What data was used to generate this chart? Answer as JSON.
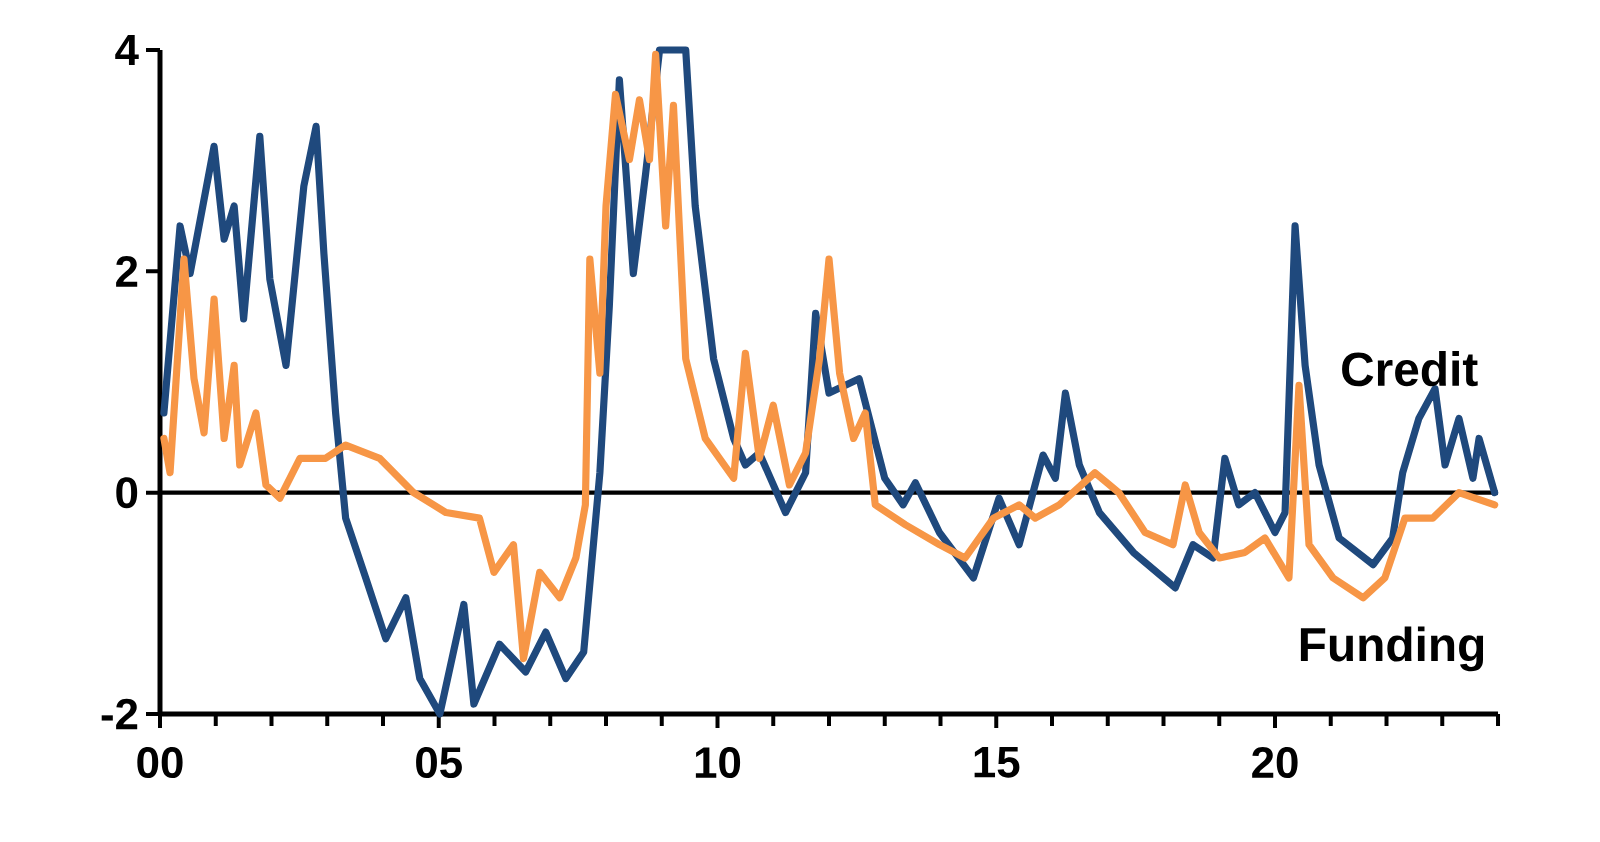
{
  "chart_data": {
    "type": "line",
    "xlim": [
      0,
      24
    ],
    "ylim": [
      -2,
      4
    ],
    "xticks": [
      {
        "value": 0,
        "label": "00"
      },
      {
        "value": 1,
        "label": null
      },
      {
        "value": 2,
        "label": null
      },
      {
        "value": 3,
        "label": null
      },
      {
        "value": 4,
        "label": null
      },
      {
        "value": 5,
        "label": "05"
      },
      {
        "value": 6,
        "label": null
      },
      {
        "value": 7,
        "label": null
      },
      {
        "value": 8,
        "label": null
      },
      {
        "value": 9,
        "label": null
      },
      {
        "value": 10,
        "label": "10"
      },
      {
        "value": 11,
        "label": null
      },
      {
        "value": 12,
        "label": null
      },
      {
        "value": 13,
        "label": null
      },
      {
        "value": 14,
        "label": null
      },
      {
        "value": 15,
        "label": "15"
      },
      {
        "value": 16,
        "label": null
      },
      {
        "value": 17,
        "label": null
      },
      {
        "value": 18,
        "label": null
      },
      {
        "value": 19,
        "label": null
      },
      {
        "value": 20,
        "label": "20"
      },
      {
        "value": 21,
        "label": null
      },
      {
        "value": 22,
        "label": null
      },
      {
        "value": 23,
        "label": null
      },
      {
        "value": 24,
        "label": null
      }
    ],
    "yticks": [
      -2,
      0,
      2,
      4
    ],
    "grid": false,
    "legend": false,
    "marker": "none",
    "line_style": "solid",
    "ref_lines": [
      {
        "axis": "y",
        "value": 0,
        "color": "#000000"
      }
    ],
    "series": [
      {
        "name": "Credit",
        "color": "#1f497d",
        "x": [
          0.07,
          0.36,
          0.54,
          0.97,
          1.15,
          1.33,
          1.5,
          1.79,
          1.97,
          2.26,
          2.58,
          2.8,
          2.94,
          3.15,
          3.33,
          3.69,
          4.05,
          4.41,
          4.66,
          5.02,
          5.45,
          5.63,
          6.09,
          6.56,
          6.92,
          7.28,
          7.6,
          7.89,
          8.06,
          8.24,
          8.49,
          8.71,
          8.96,
          9.43,
          9.6,
          9.93,
          10.29,
          10.5,
          10.75,
          11.22,
          11.58,
          11.76,
          12.0,
          12.54,
          13.0,
          13.33,
          13.55,
          13.98,
          14.59,
          15.05,
          15.41,
          15.84,
          16.06,
          16.24,
          16.49,
          16.85,
          17.46,
          18.21,
          18.53,
          18.89,
          19.1,
          19.35,
          19.64,
          20.0,
          20.18,
          20.36,
          20.54,
          20.79,
          21.15,
          21.76,
          22.11,
          22.29,
          22.58,
          22.87,
          23.05,
          23.3,
          23.55,
          23.66,
          23.94
        ],
        "values": [
          0.72,
          2.41,
          1.98,
          3.13,
          2.29,
          2.59,
          1.57,
          3.22,
          1.93,
          1.15,
          2.77,
          3.31,
          2.16,
          0.72,
          -0.23,
          -0.77,
          -1.32,
          -0.95,
          -1.68,
          -2.0,
          -1.01,
          -1.91,
          -1.37,
          -1.62,
          -1.26,
          -1.68,
          -1.44,
          0.18,
          1.69,
          3.73,
          1.98,
          2.88,
          4.0,
          4.0,
          2.59,
          1.21,
          0.49,
          0.25,
          0.36,
          -0.18,
          0.18,
          1.62,
          0.9,
          1.03,
          0.13,
          -0.11,
          0.09,
          -0.36,
          -0.77,
          -0.05,
          -0.47,
          0.34,
          0.13,
          0.9,
          0.25,
          -0.18,
          -0.54,
          -0.86,
          -0.47,
          -0.59,
          0.31,
          -0.11,
          0.0,
          -0.36,
          -0.18,
          2.41,
          1.15,
          0.25,
          -0.41,
          -0.65,
          -0.41,
          0.18,
          0.67,
          0.94,
          0.25,
          0.67,
          0.13,
          0.49,
          0.0
        ]
      },
      {
        "name": "Funding",
        "color": "#f79646",
        "x": [
          0.07,
          0.18,
          0.43,
          0.61,
          0.79,
          0.97,
          1.15,
          1.33,
          1.43,
          1.72,
          1.9,
          2.15,
          2.51,
          2.97,
          3.33,
          3.94,
          4.55,
          5.13,
          5.73,
          5.99,
          6.34,
          6.52,
          6.81,
          7.17,
          7.46,
          7.63,
          7.71,
          7.89,
          8.0,
          8.17,
          8.42,
          8.6,
          8.78,
          8.89,
          9.07,
          9.21,
          9.43,
          9.78,
          10.29,
          10.5,
          10.75,
          11.0,
          11.29,
          11.58,
          11.83,
          12.0,
          12.19,
          12.44,
          12.65,
          12.83,
          13.37,
          13.98,
          14.44,
          14.95,
          15.41,
          15.7,
          16.13,
          16.77,
          17.2,
          17.67,
          18.17,
          18.39,
          18.64,
          19.0,
          19.46,
          19.82,
          20.25,
          20.43,
          20.61,
          21.04,
          21.58,
          21.97,
          22.33,
          22.83,
          23.3,
          23.94
        ],
        "values": [
          0.49,
          0.18,
          2.11,
          1.03,
          0.54,
          1.75,
          0.49,
          1.15,
          0.25,
          0.72,
          0.07,
          -0.05,
          0.31,
          0.31,
          0.43,
          0.31,
          0.0,
          -0.18,
          -0.23,
          -0.72,
          -0.47,
          -1.5,
          -0.72,
          -0.95,
          -0.59,
          -0.11,
          2.11,
          1.08,
          2.59,
          3.6,
          3.01,
          3.55,
          3.01,
          3.96,
          2.41,
          3.5,
          1.21,
          0.49,
          0.13,
          1.26,
          0.31,
          0.79,
          0.07,
          0.36,
          1.21,
          2.11,
          1.08,
          0.49,
          0.72,
          -0.11,
          -0.29,
          -0.47,
          -0.59,
          -0.23,
          -0.11,
          -0.23,
          -0.11,
          0.18,
          0.0,
          -0.36,
          -0.47,
          0.07,
          -0.36,
          -0.59,
          -0.54,
          -0.41,
          -0.77,
          0.97,
          -0.47,
          -0.77,
          -0.95,
          -0.77,
          -0.23,
          -0.23,
          0.0,
          -0.11
        ]
      }
    ]
  }
}
